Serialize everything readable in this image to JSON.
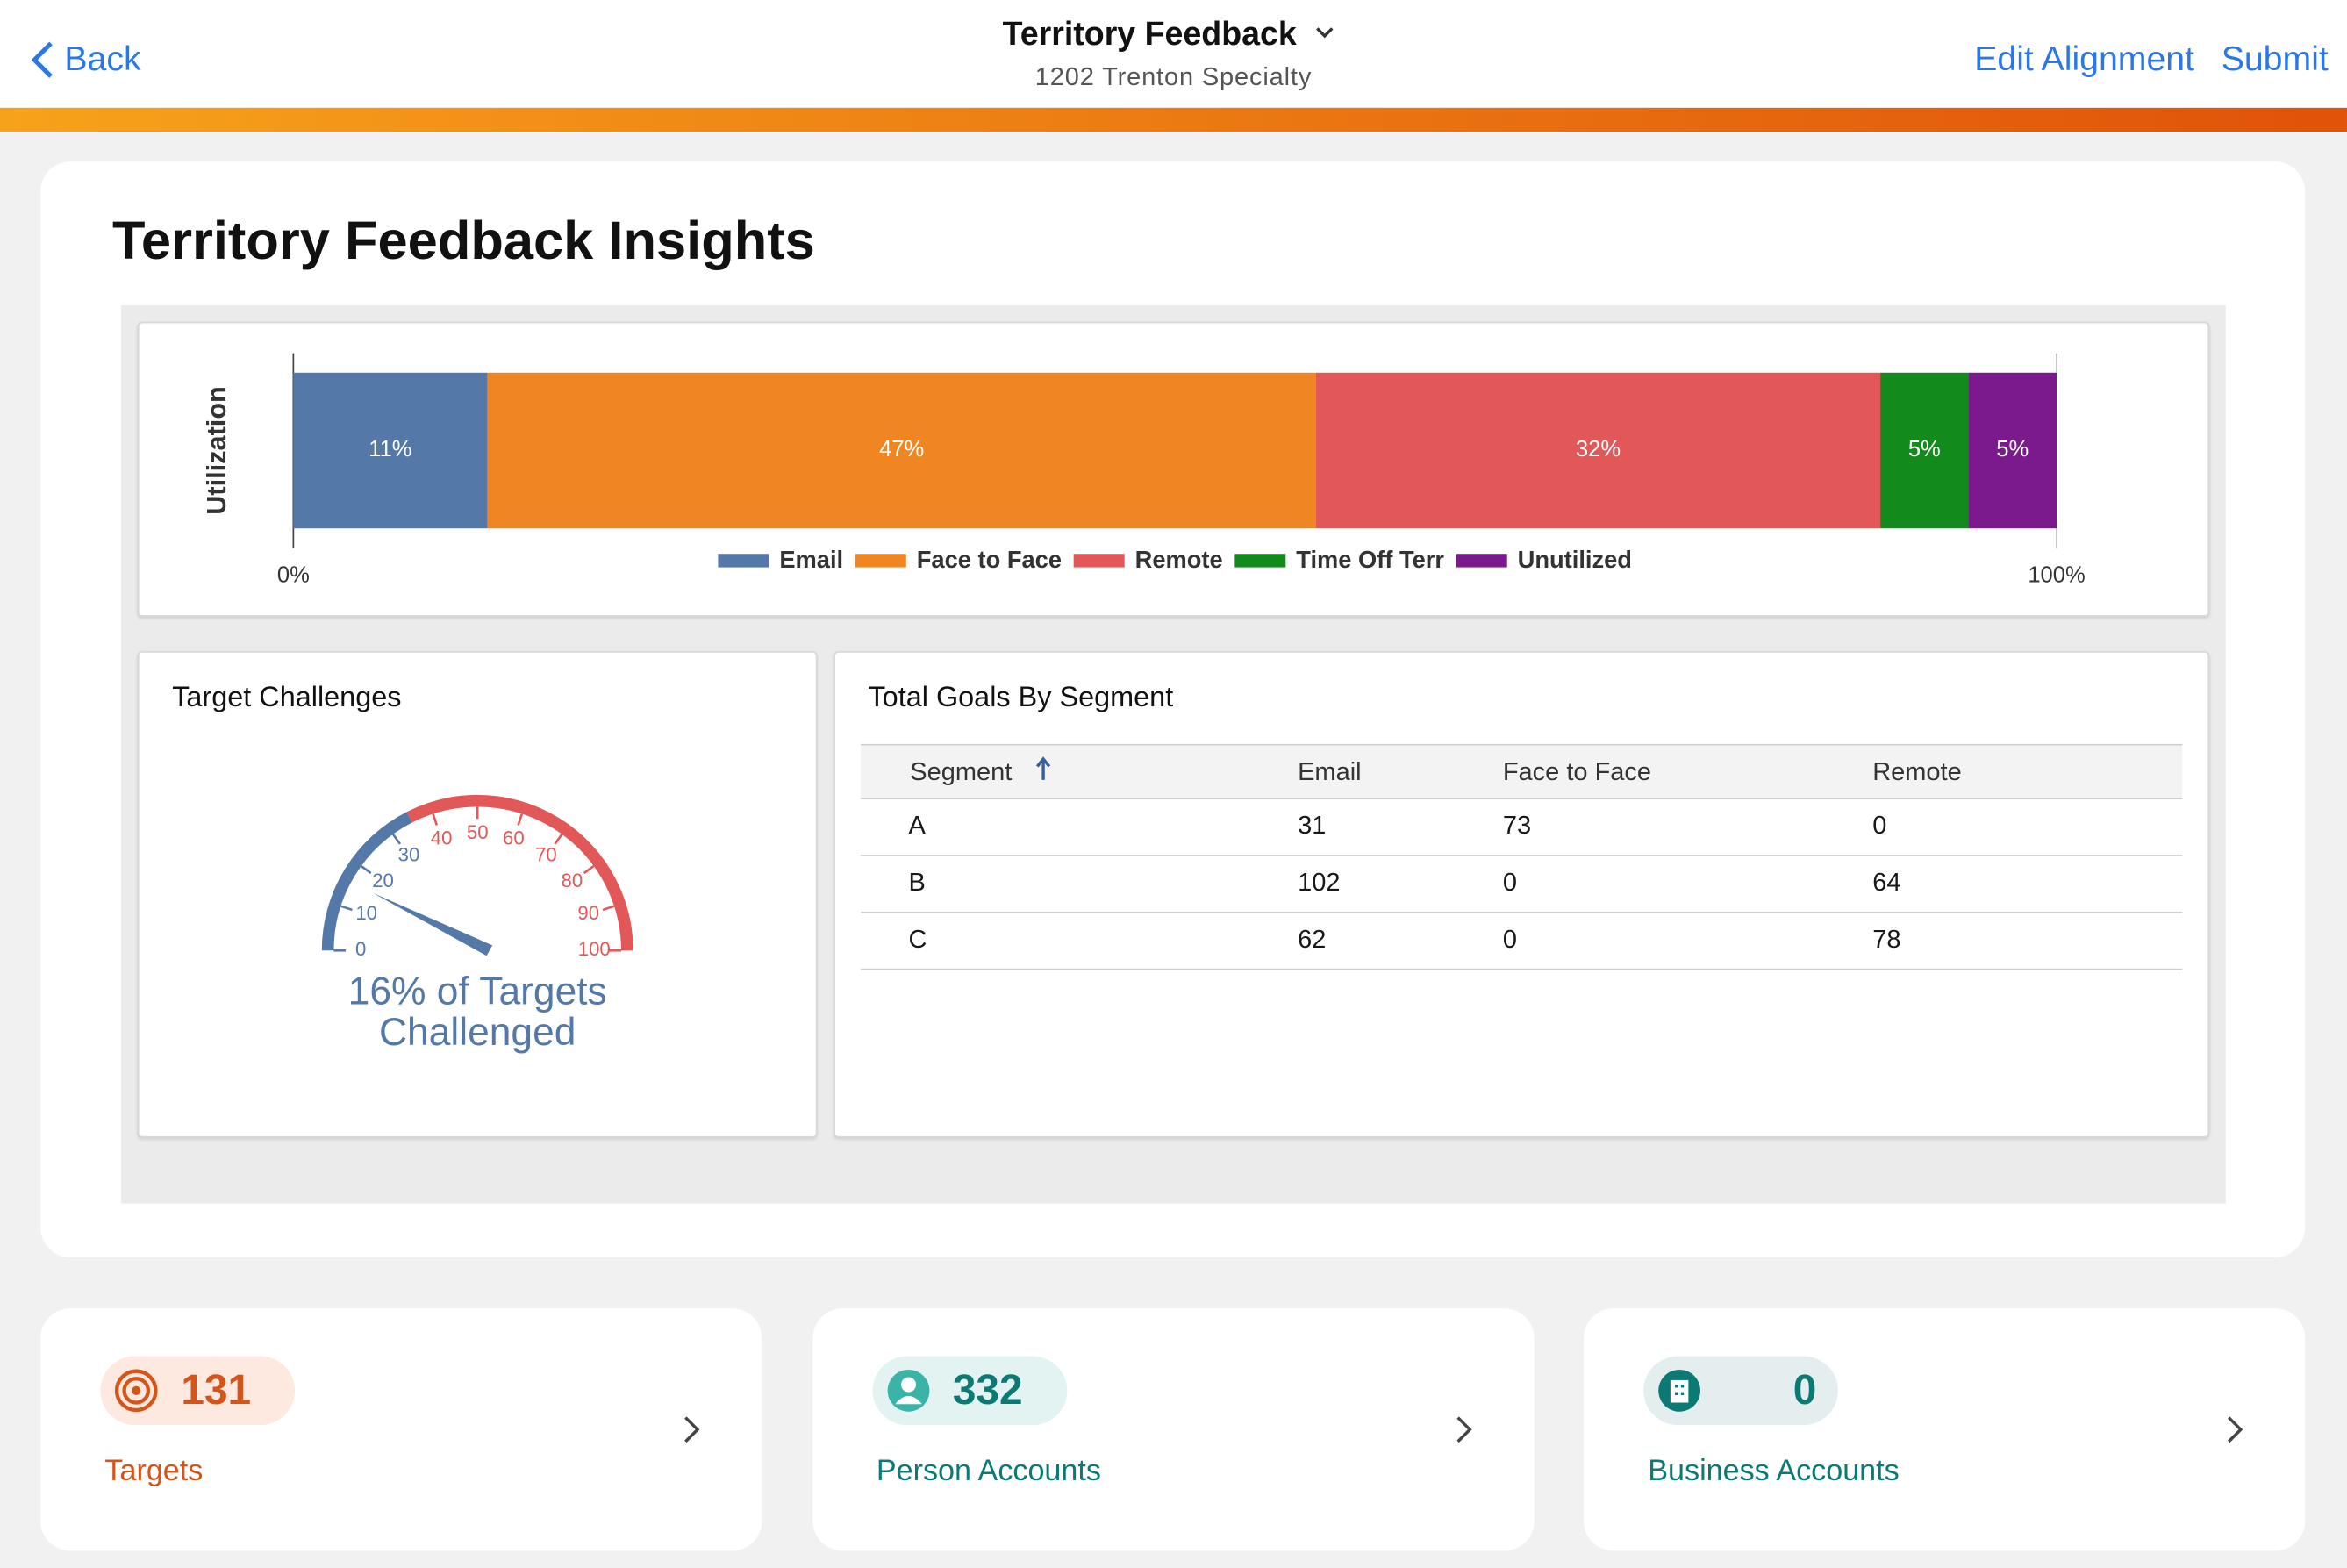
{
  "header": {
    "back": "Back",
    "title": "Territory Feedback",
    "subtitle": "1202 Trenton Specialty",
    "actions": [
      "Edit Alignment",
      "Submit"
    ]
  },
  "insights": {
    "title": "Territory Feedback Insights"
  },
  "chart_data": [
    {
      "type": "bar",
      "orientation": "horizontal",
      "stacked": true,
      "y_label": "Utilization",
      "categories": [
        null
      ],
      "series": [
        {
          "name": "Email",
          "color": "#5479a9",
          "values": [
            11
          ],
          "value_labels": [
            "11%"
          ]
        },
        {
          "name": "Face to Face",
          "color": "#f08622",
          "values": [
            47
          ],
          "value_labels": [
            "47%"
          ]
        },
        {
          "name": "Remote",
          "color": "#e25757",
          "values": [
            32
          ],
          "value_labels": [
            "32%"
          ]
        },
        {
          "name": "Time Off Terr",
          "color": "#128a1c",
          "values": [
            5
          ],
          "value_labels": [
            "5%"
          ]
        },
        {
          "name": "Unutilized",
          "color": "#7a1a8c",
          "values": [
            5
          ],
          "value_labels": [
            "5%"
          ]
        }
      ],
      "xlim": [
        0,
        100
      ],
      "xticks": [
        {
          "value": 0,
          "label": "0%"
        },
        {
          "value": 100,
          "label": "100%"
        }
      ],
      "legend": "bottom"
    },
    {
      "type": "gauge",
      "title": "Target Challenges",
      "value": 16,
      "label": "16% of Targets Challenged",
      "lim": [
        0,
        100
      ],
      "ticks": [
        0,
        10,
        20,
        30,
        40,
        50,
        60,
        70,
        80,
        90,
        100
      ],
      "bands": [
        {
          "from": 0,
          "to": 35,
          "color": "#5479a9"
        },
        {
          "from": 35,
          "to": 100,
          "color": "#e25757"
        }
      ]
    }
  ],
  "goals_table": {
    "title": "Total Goals By Segment",
    "columns": [
      "Segment",
      "Email",
      "Face to Face",
      "Remote"
    ],
    "rows": [
      [
        "A",
        31,
        73,
        0
      ],
      [
        "B",
        102,
        0,
        64
      ],
      [
        "C",
        62,
        0,
        78
      ]
    ]
  },
  "tiles": [
    {
      "count": 131,
      "label": "Targets"
    },
    {
      "count": 332,
      "label": "Person Accounts"
    },
    {
      "count": 0,
      "label": "Business Accounts"
    }
  ]
}
